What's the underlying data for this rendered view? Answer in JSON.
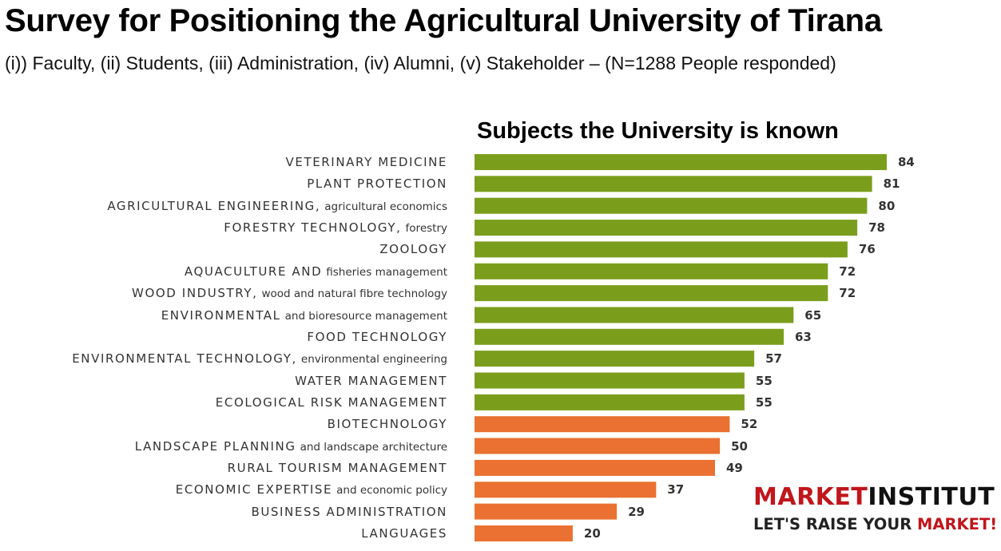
{
  "header": {
    "title": "Survey for Positioning the Agricultural University of Tirana",
    "subtitle": "(i)) Faculty, (ii) Students, (iii) Administration, (iv) Alumni, (v) Stakeholder – (N=1288 People responded)"
  },
  "chart_data": {
    "type": "bar",
    "orientation": "horizontal",
    "title": "Subjects the University is known",
    "xlabel": "",
    "ylabel": "",
    "xlim": [
      0,
      84
    ],
    "grid": false,
    "categories": [
      {
        "main": "VETERINARY MEDICINE",
        "sub": ""
      },
      {
        "main": "PLANT PROTECTION",
        "sub": ""
      },
      {
        "main": "AGRICULTURAL ENGINEERING,",
        "sub": "agricultural economics"
      },
      {
        "main": "FORESTRY TECHNOLOGY,",
        "sub": "forestry"
      },
      {
        "main": "ZOOLOGY",
        "sub": ""
      },
      {
        "main": "AQUACULTURE AND",
        "sub": "fisheries management"
      },
      {
        "main": "WOOD INDUSTRY,",
        "sub": "wood and natural fibre technology"
      },
      {
        "main": "ENVIRONMENTAL",
        "sub": "and bioresource management"
      },
      {
        "main": "FOOD TECHNOLOGY",
        "sub": ""
      },
      {
        "main": "ENVIRONMENTAL TECHNOLOGY,",
        "sub": "environmental engineering"
      },
      {
        "main": "WATER MANAGEMENT",
        "sub": ""
      },
      {
        "main": "ECOLOGICAL RISK MANAGEMENT",
        "sub": ""
      },
      {
        "main": "BIOTECHNOLOGY",
        "sub": ""
      },
      {
        "main": "LANDSCAPE PLANNING",
        "sub": "and landscape architecture"
      },
      {
        "main": "RURAL TOURISM MANAGEMENT",
        "sub": ""
      },
      {
        "main": "ECONOMIC EXPERTISE",
        "sub": "and economic policy"
      },
      {
        "main": "BUSINESS ADMINISTRATION",
        "sub": ""
      },
      {
        "main": "LANGUAGES",
        "sub": ""
      }
    ],
    "values": [
      84,
      81,
      80,
      78,
      76,
      72,
      72,
      65,
      63,
      57,
      55,
      55,
      52,
      50,
      49,
      37,
      29,
      20
    ],
    "groups": [
      "green",
      "green",
      "green",
      "green",
      "green",
      "green",
      "green",
      "green",
      "green",
      "green",
      "green",
      "green",
      "orange",
      "orange",
      "orange",
      "orange",
      "orange",
      "orange"
    ],
    "colors": {
      "green": "#7a9e1b",
      "orange": "#ea7131"
    }
  },
  "logo": {
    "line1_a": "MARKET",
    "line1_b": "INSTITUT",
    "line2_a": "LET'S RAISE YOUR ",
    "line2_b": "MARKET!"
  }
}
